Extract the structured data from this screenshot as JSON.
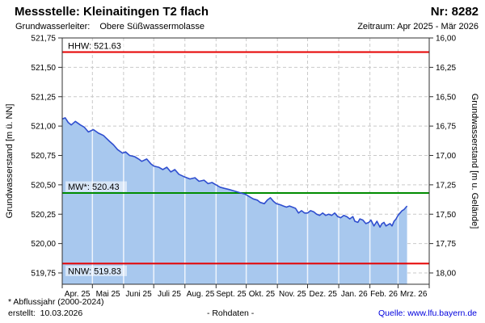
{
  "header": {
    "title": "Messstelle: Kleinaitingen T2 flach",
    "number": "Nr: 8282",
    "aquifer_label": "Grundwasserleiter:",
    "aquifer_value": "Obere Süßwassermolasse",
    "period": "Zeitraum: Apr 2025 - Mär 2026"
  },
  "footer": {
    "footnote": "* Abflussjahr (2000-2024)",
    "created": "erstellt:  10.03.2026",
    "center": "- Rohdaten -",
    "source": "Quelle: www.lfu.bayern.de",
    "source_color": "#0000dd"
  },
  "chart_data": {
    "type": "area",
    "title": "",
    "x_unit": "days since 2025-04-01",
    "x_range_days": 365,
    "month_boundaries_days": [
      0,
      30,
      61,
      91,
      122,
      153,
      183,
      214,
      244,
      275,
      306,
      334,
      365
    ],
    "month_labels": [
      "Apr. 25",
      "Mai 25",
      "Juni 25",
      "Juli 25",
      "Aug. 25",
      "Sept. 25",
      "Okt. 25",
      "Nov. 25",
      "Dez. 25",
      "Jan. 26",
      "Feb. 26",
      "Mrz. 26"
    ],
    "yaxis_left": {
      "title": "Grundwasserstand [m ü. NN]",
      "ticks": [
        521.75,
        521.5,
        521.25,
        521.0,
        520.75,
        520.5,
        520.25,
        520.0,
        519.75
      ],
      "decimal_separator": ","
    },
    "yaxis_right": {
      "title": "Grundwasserstand [m u. Gelände]",
      "ticks": [
        16.0,
        16.25,
        16.5,
        16.75,
        17.0,
        17.25,
        17.5,
        17.75,
        18.0
      ],
      "decimal_separator": ","
    },
    "grid": true,
    "reference_lines": [
      {
        "name": "HHW",
        "label": "HHW: 521.63",
        "value": 521.63,
        "color": "#e60000",
        "label_side": "above"
      },
      {
        "name": "MW*",
        "label": "MW*: 520.43",
        "value": 520.43,
        "color": "#008c00",
        "label_side": "above"
      },
      {
        "name": "NNW",
        "label": "NNW: 519.83",
        "value": 519.83,
        "color": "#e60000",
        "label_side": "below"
      }
    ],
    "series": [
      {
        "name": "Grundwasserstand Rohdaten",
        "line_color": "#2f4ecf",
        "fill_color": "#a8c8ee",
        "points": [
          [
            0,
            521.06
          ],
          [
            3,
            521.07
          ],
          [
            6,
            521.03
          ],
          [
            9,
            521.01
          ],
          [
            13,
            521.04
          ],
          [
            18,
            521.01
          ],
          [
            22,
            520.99
          ],
          [
            26,
            520.95
          ],
          [
            31,
            520.97
          ],
          [
            36,
            520.94
          ],
          [
            41,
            520.92
          ],
          [
            47,
            520.87
          ],
          [
            51,
            520.84
          ],
          [
            55,
            520.8
          ],
          [
            60,
            520.77
          ],
          [
            63,
            520.78
          ],
          [
            67,
            520.75
          ],
          [
            72,
            520.74
          ],
          [
            76,
            520.72
          ],
          [
            79,
            520.7
          ],
          [
            84,
            520.72
          ],
          [
            88,
            520.68
          ],
          [
            91,
            520.66
          ],
          [
            96,
            520.65
          ],
          [
            100,
            520.63
          ],
          [
            104,
            520.65
          ],
          [
            108,
            520.61
          ],
          [
            112,
            520.63
          ],
          [
            116,
            520.59
          ],
          [
            121,
            520.57
          ],
          [
            127,
            520.55
          ],
          [
            132,
            520.56
          ],
          [
            136,
            520.53
          ],
          [
            141,
            520.54
          ],
          [
            145,
            520.51
          ],
          [
            149,
            520.52
          ],
          [
            153,
            520.5
          ],
          [
            157,
            520.48
          ],
          [
            161,
            520.47
          ],
          [
            166,
            520.46
          ],
          [
            170,
            520.45
          ],
          [
            174,
            520.44
          ],
          [
            178,
            520.43
          ],
          [
            182,
            520.42
          ],
          [
            186,
            520.4
          ],
          [
            190,
            520.38
          ],
          [
            194,
            520.37
          ],
          [
            197,
            520.35
          ],
          [
            201,
            520.34
          ],
          [
            204,
            520.37
          ],
          [
            207,
            520.39
          ],
          [
            210,
            520.36
          ],
          [
            213,
            520.34
          ],
          [
            217,
            520.33
          ],
          [
            220,
            520.32
          ],
          [
            223,
            520.31
          ],
          [
            226,
            520.32
          ],
          [
            229,
            520.31
          ],
          [
            232,
            520.3
          ],
          [
            235,
            520.26
          ],
          [
            238,
            520.28
          ],
          [
            241,
            520.26
          ],
          [
            244,
            520.26
          ],
          [
            247,
            520.28
          ],
          [
            250,
            520.27
          ],
          [
            253,
            520.25
          ],
          [
            256,
            520.24
          ],
          [
            259,
            520.26
          ],
          [
            262,
            520.24
          ],
          [
            265,
            520.25
          ],
          [
            268,
            520.24
          ],
          [
            271,
            520.26
          ],
          [
            274,
            520.23
          ],
          [
            277,
            520.22
          ],
          [
            280,
            520.24
          ],
          [
            283,
            520.23
          ],
          [
            286,
            520.21
          ],
          [
            289,
            520.23
          ],
          [
            291,
            520.19
          ],
          [
            294,
            520.18
          ],
          [
            296,
            520.21
          ],
          [
            299,
            520.2
          ],
          [
            302,
            520.17
          ],
          [
            305,
            520.18
          ],
          [
            307,
            520.2
          ],
          [
            310,
            520.15
          ],
          [
            313,
            520.19
          ],
          [
            316,
            520.14
          ],
          [
            318,
            520.17
          ],
          [
            320,
            520.18
          ],
          [
            322,
            520.15
          ],
          [
            324,
            520.16
          ],
          [
            326,
            520.17
          ],
          [
            328,
            520.15
          ],
          [
            330,
            520.19
          ],
          [
            332,
            520.21
          ],
          [
            334,
            520.24
          ],
          [
            336,
            520.26
          ],
          [
            338,
            520.28
          ],
          [
            340,
            520.29
          ],
          [
            342,
            520.31
          ],
          [
            343,
            520.32
          ]
        ]
      }
    ],
    "colors": {
      "grid": "#c9c9c9",
      "frame": "#303030"
    }
  }
}
